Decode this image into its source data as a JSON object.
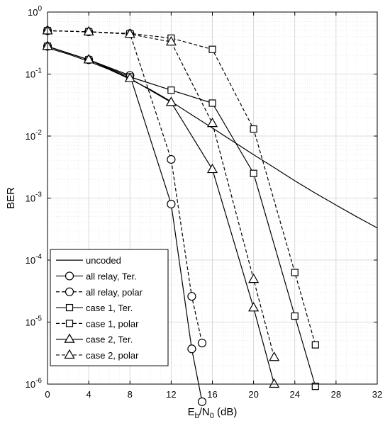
{
  "chart_data": {
    "type": "line",
    "xlabel": "E",
    "xlabel_sub_b": "b",
    "xlabel_sep": "/N",
    "xlabel_sub_0": "0",
    "xlabel_unit": " (dB)",
    "ylabel": "BER",
    "xlim": [
      0,
      32
    ],
    "ylim": [
      1e-06,
      1
    ],
    "yscale": "log",
    "grid": true,
    "minor_grid": true,
    "legend_position": "bottom-left",
    "x_ticks": [
      0,
      4,
      8,
      12,
      16,
      20,
      24,
      28,
      32
    ],
    "y_tick_labels": [
      {
        "exp": -6,
        "base": "10",
        "sup": "-6"
      },
      {
        "exp": -5,
        "base": "10",
        "sup": "-5"
      },
      {
        "exp": -4,
        "base": "10",
        "sup": "-4"
      },
      {
        "exp": -3,
        "base": "10",
        "sup": "-3"
      },
      {
        "exp": -2,
        "base": "10",
        "sup": "-2"
      },
      {
        "exp": -1,
        "base": "10",
        "sup": "-1"
      },
      {
        "exp": 0,
        "base": "10",
        "sup": "0"
      }
    ],
    "series": [
      {
        "name": "uncoded",
        "dash": "solid",
        "marker": "none",
        "x": [
          0,
          2,
          4,
          6,
          8,
          10,
          12,
          14,
          16,
          18,
          20,
          22,
          24,
          26,
          28,
          30,
          32
        ],
        "y": [
          0.265,
          0.21,
          0.16,
          0.118,
          0.083,
          0.056,
          0.036,
          0.022,
          0.0135,
          0.0082,
          0.005,
          0.0031,
          0.0019,
          0.0012,
          0.00077,
          0.0005,
          0.00033
        ]
      },
      {
        "name": "all relay, Ter.",
        "dash": "solid",
        "marker": "circle",
        "x": [
          0,
          4,
          8,
          12,
          14,
          15
        ],
        "y": [
          0.28,
          0.17,
          0.095,
          0.0008,
          3.7e-06,
          5.2e-07
        ]
      },
      {
        "name": "all relay, polar",
        "dash": "dashed",
        "marker": "circle",
        "x": [
          0,
          4,
          8,
          12,
          14,
          15
        ],
        "y": [
          0.5,
          0.48,
          0.45,
          0.0042,
          2.6e-05,
          4.6e-06
        ]
      },
      {
        "name": "case 1, Ter.",
        "dash": "solid",
        "marker": "square",
        "x": [
          0,
          4,
          8,
          12,
          16,
          20,
          24,
          26
        ],
        "y": [
          0.28,
          0.17,
          0.09,
          0.055,
          0.034,
          0.0025,
          1.25e-05,
          9.2e-07
        ]
      },
      {
        "name": "case 1, polar",
        "dash": "dashed",
        "marker": "square",
        "x": [
          0,
          4,
          8,
          12,
          16,
          20,
          24,
          26
        ],
        "y": [
          0.5,
          0.48,
          0.45,
          0.38,
          0.25,
          0.013,
          6.3e-05,
          4.3e-06
        ]
      },
      {
        "name": "case 2, Ter.",
        "dash": "solid",
        "marker": "triangle",
        "x": [
          0,
          4,
          8,
          12,
          16,
          20,
          22
        ],
        "y": [
          0.28,
          0.17,
          0.085,
          0.035,
          0.0029,
          1.7e-05,
          1e-06
        ]
      },
      {
        "name": "case 2, polar",
        "dash": "dashed",
        "marker": "triangle",
        "x": [
          0,
          4,
          8,
          12,
          16,
          20,
          22
        ],
        "y": [
          0.5,
          0.48,
          0.44,
          0.33,
          0.016,
          4.9e-05,
          2.7e-06
        ]
      }
    ]
  }
}
